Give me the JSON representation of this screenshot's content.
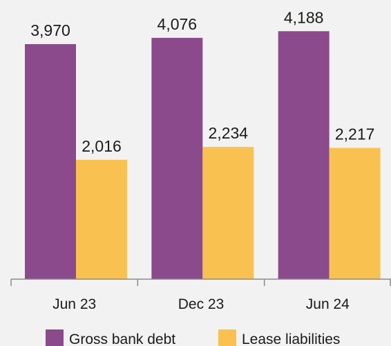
{
  "chart_data": {
    "type": "bar",
    "categories": [
      "Jun 23",
      "Dec 23",
      "Jun 24"
    ],
    "series": [
      {
        "name": "Gross bank debt",
        "values": [
          3970,
          4076,
          4188
        ],
        "labels": [
          "3,970",
          "4,076",
          "4,188"
        ],
        "color": "#8b4a8b"
      },
      {
        "name": "Lease liabilities",
        "values": [
          2016,
          2234,
          2217
        ],
        "labels": [
          "2,016",
          "2,234",
          "2,217"
        ],
        "color": "#f9c250"
      }
    ],
    "title": "",
    "xlabel": "",
    "ylabel": "",
    "ylim": [
      0,
      4500
    ],
    "grid": false,
    "legend": "bottom"
  }
}
